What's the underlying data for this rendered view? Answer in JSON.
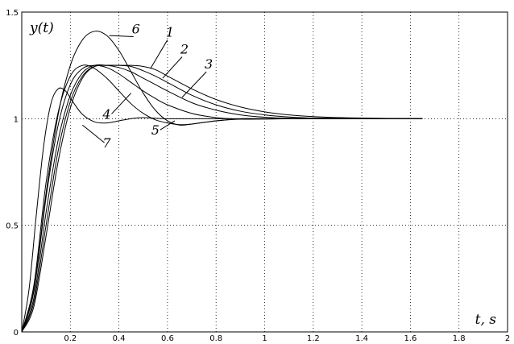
{
  "chart_data": {
    "type": "line",
    "title": "",
    "xlabel": "t, s",
    "ylabel": "y(t)",
    "xlim": [
      0,
      2
    ],
    "ylim": [
      0,
      1.5
    ],
    "grid": true,
    "x_ticks": [
      "0.2",
      "0.4",
      "0.6",
      "0.8",
      "1",
      "1.2",
      "1.4",
      "1.6",
      "1.8",
      "2"
    ],
    "y_ticks": [
      "0",
      "0.5",
      "1",
      "1.5"
    ],
    "series": [
      {
        "name": "1",
        "points": [
          [
            0,
            0
          ],
          [
            0.05,
            0.12
          ],
          [
            0.1,
            0.45
          ],
          [
            0.15,
            0.8
          ],
          [
            0.2,
            1.05
          ],
          [
            0.25,
            1.19
          ],
          [
            0.3,
            1.245
          ],
          [
            0.35,
            1.25
          ],
          [
            0.4,
            1.25
          ],
          [
            0.45,
            1.25
          ],
          [
            0.5,
            1.245
          ],
          [
            0.55,
            1.23
          ],
          [
            0.6,
            1.2
          ],
          [
            0.7,
            1.14
          ],
          [
            0.8,
            1.09
          ],
          [
            0.9,
            1.055
          ],
          [
            1.0,
            1.032
          ],
          [
            1.1,
            1.018
          ],
          [
            1.2,
            1.01
          ],
          [
            1.4,
            1.003
          ],
          [
            1.65,
            1.0
          ]
        ]
      },
      {
        "name": "2",
        "points": [
          [
            0,
            0
          ],
          [
            0.05,
            0.14
          ],
          [
            0.1,
            0.5
          ],
          [
            0.15,
            0.85
          ],
          [
            0.2,
            1.08
          ],
          [
            0.25,
            1.2
          ],
          [
            0.3,
            1.245
          ],
          [
            0.35,
            1.25
          ],
          [
            0.4,
            1.25
          ],
          [
            0.45,
            1.245
          ],
          [
            0.5,
            1.225
          ],
          [
            0.55,
            1.2
          ],
          [
            0.6,
            1.17
          ],
          [
            0.7,
            1.11
          ],
          [
            0.8,
            1.065
          ],
          [
            0.9,
            1.035
          ],
          [
            1.0,
            1.018
          ],
          [
            1.1,
            1.008
          ],
          [
            1.2,
            1.003
          ],
          [
            1.4,
            1.0
          ],
          [
            1.65,
            1.0
          ]
        ]
      },
      {
        "name": "3",
        "points": [
          [
            0,
            0
          ],
          [
            0.05,
            0.16
          ],
          [
            0.1,
            0.56
          ],
          [
            0.15,
            0.9
          ],
          [
            0.2,
            1.11
          ],
          [
            0.25,
            1.215
          ],
          [
            0.3,
            1.25
          ],
          [
            0.35,
            1.25
          ],
          [
            0.4,
            1.24
          ],
          [
            0.45,
            1.22
          ],
          [
            0.5,
            1.19
          ],
          [
            0.55,
            1.16
          ],
          [
            0.6,
            1.13
          ],
          [
            0.7,
            1.075
          ],
          [
            0.8,
            1.04
          ],
          [
            0.9,
            1.018
          ],
          [
            1.0,
            1.007
          ],
          [
            1.1,
            1.002
          ],
          [
            1.2,
            1.0
          ],
          [
            1.4,
            1.0
          ],
          [
            1.65,
            1.0
          ]
        ]
      },
      {
        "name": "4",
        "points": [
          [
            0,
            0
          ],
          [
            0.05,
            0.19
          ],
          [
            0.1,
            0.63
          ],
          [
            0.15,
            0.97
          ],
          [
            0.2,
            1.16
          ],
          [
            0.25,
            1.235
          ],
          [
            0.3,
            1.25
          ],
          [
            0.35,
            1.24
          ],
          [
            0.4,
            1.21
          ],
          [
            0.45,
            1.17
          ],
          [
            0.5,
            1.13
          ],
          [
            0.55,
            1.095
          ],
          [
            0.6,
            1.065
          ],
          [
            0.7,
            1.025
          ],
          [
            0.8,
            1.005
          ],
          [
            0.9,
            0.998
          ],
          [
            1.0,
            0.998
          ],
          [
            1.1,
            1.0
          ],
          [
            1.2,
            1.0
          ],
          [
            1.4,
            1.0
          ],
          [
            1.65,
            1.0
          ]
        ]
      },
      {
        "name": "5",
        "points": [
          [
            0,
            0
          ],
          [
            0.05,
            0.22
          ],
          [
            0.1,
            0.7
          ],
          [
            0.15,
            1.03
          ],
          [
            0.2,
            1.2
          ],
          [
            0.25,
            1.25
          ],
          [
            0.3,
            1.235
          ],
          [
            0.35,
            1.19
          ],
          [
            0.4,
            1.13
          ],
          [
            0.45,
            1.07
          ],
          [
            0.5,
            1.025
          ],
          [
            0.55,
            0.995
          ],
          [
            0.6,
            0.98
          ],
          [
            0.65,
            0.972
          ],
          [
            0.7,
            0.975
          ],
          [
            0.8,
            0.99
          ],
          [
            0.9,
            0.998
          ],
          [
            1.0,
            1.0
          ],
          [
            1.2,
            1.0
          ],
          [
            1.4,
            1.0
          ],
          [
            1.65,
            1.0
          ]
        ]
      },
      {
        "name": "6",
        "points": [
          [
            0,
            0
          ],
          [
            0.05,
            0.2
          ],
          [
            0.1,
            0.65
          ],
          [
            0.15,
            1.02
          ],
          [
            0.2,
            1.25
          ],
          [
            0.25,
            1.37
          ],
          [
            0.3,
            1.41
          ],
          [
            0.35,
            1.39
          ],
          [
            0.4,
            1.32
          ],
          [
            0.45,
            1.22
          ],
          [
            0.5,
            1.12
          ],
          [
            0.55,
            1.04
          ],
          [
            0.6,
            0.99
          ],
          [
            0.65,
            0.97
          ],
          [
            0.7,
            0.975
          ],
          [
            0.8,
            0.99
          ],
          [
            0.9,
            1.0
          ],
          [
            1.0,
            1.0
          ],
          [
            1.2,
            1.0
          ],
          [
            1.4,
            1.0
          ],
          [
            1.65,
            1.0
          ]
        ]
      },
      {
        "name": "7",
        "points": [
          [
            0,
            0
          ],
          [
            0.03,
            0.2
          ],
          [
            0.06,
            0.55
          ],
          [
            0.09,
            0.87
          ],
          [
            0.12,
            1.07
          ],
          [
            0.15,
            1.14
          ],
          [
            0.18,
            1.13
          ],
          [
            0.21,
            1.08
          ],
          [
            0.25,
            1.02
          ],
          [
            0.3,
            0.985
          ],
          [
            0.35,
            0.98
          ],
          [
            0.4,
            0.99
          ],
          [
            0.45,
            1.0
          ],
          [
            0.5,
            1.005
          ],
          [
            0.6,
            1.0
          ],
          [
            0.8,
            1.0
          ],
          [
            1.0,
            1.0
          ],
          [
            1.2,
            1.0
          ],
          [
            1.4,
            1.0
          ],
          [
            1.65,
            1.0
          ]
        ]
      }
    ],
    "curve_labels": [
      {
        "text": "1",
        "x": 0.61,
        "y": 1.385,
        "anchor_x": 0.53,
        "anchor_y": 1.235
      },
      {
        "text": "2",
        "x": 0.67,
        "y": 1.305,
        "anchor_x": 0.58,
        "anchor_y": 1.19
      },
      {
        "text": "3",
        "x": 0.77,
        "y": 1.235,
        "anchor_x": 0.66,
        "anchor_y": 1.1
      },
      {
        "text": "4",
        "x": 0.35,
        "y": 1.0,
        "anchor_x": 0.45,
        "anchor_y": 1.12
      },
      {
        "text": "5",
        "x": 0.55,
        "y": 0.925,
        "anchor_x": 0.63,
        "anchor_y": 0.99
      },
      {
        "text": "6",
        "x": 0.47,
        "y": 1.4,
        "anchor_x": 0.36,
        "anchor_y": 1.39
      },
      {
        "text": "7",
        "x": 0.35,
        "y": 0.865,
        "anchor_x": 0.25,
        "anchor_y": 0.97
      }
    ]
  }
}
